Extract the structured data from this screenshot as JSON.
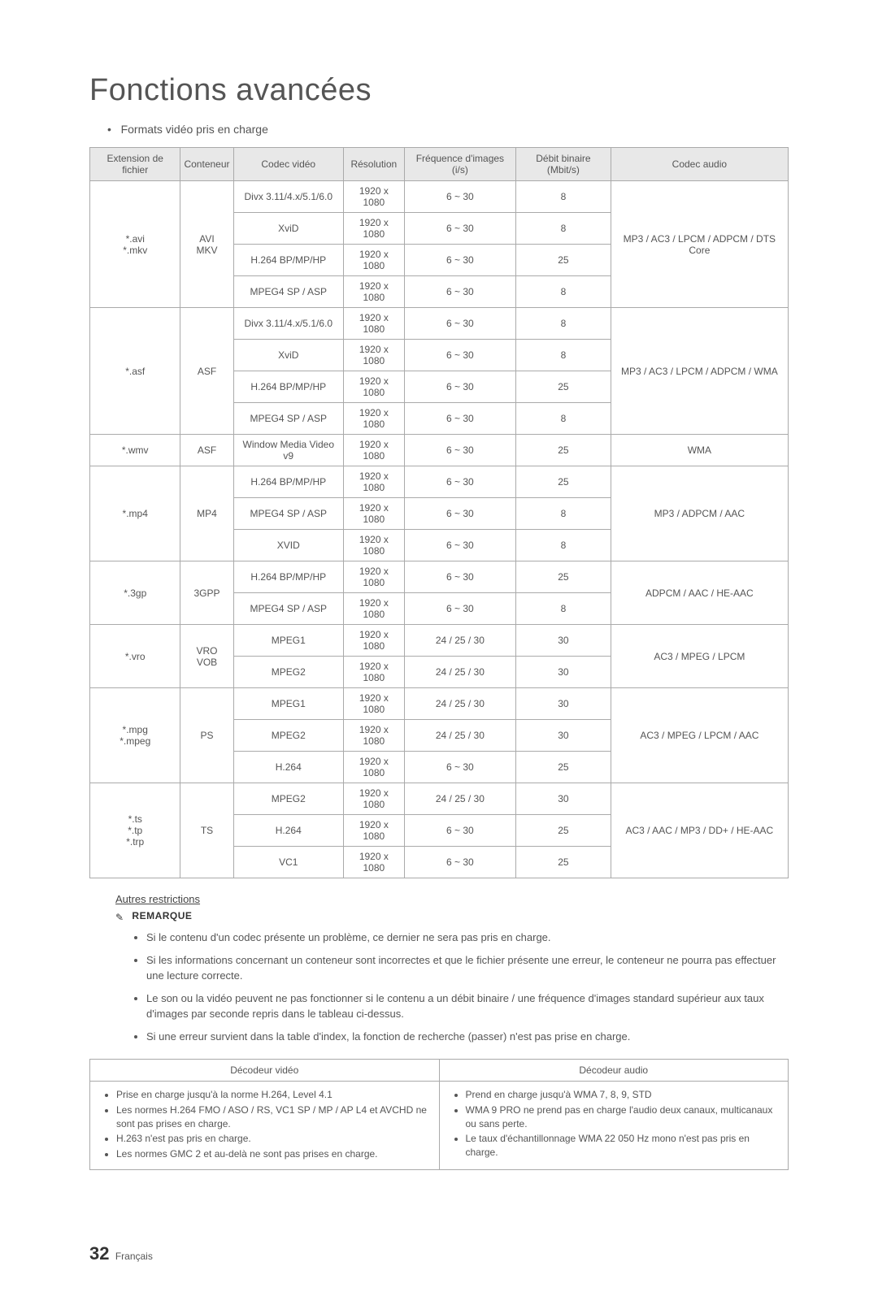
{
  "title": "Fonctions avancées",
  "subtitle": "•   Formats vidéo pris en charge",
  "table": {
    "headers": {
      "ext": "Extension de fichier",
      "container": "Conteneur",
      "vcodec": "Codec vidéo",
      "res": "Résolution",
      "fps": "Fréquence d'images (i/s)",
      "bitrate": "Débit binaire (Mbit/s)",
      "acodec": "Codec audio"
    },
    "groups": [
      {
        "ext": "*.avi\n*.mkv",
        "container": "AVI\nMKV",
        "acodec": "MP3 / AC3 / LPCM / ADPCM / DTS Core",
        "rows": [
          {
            "v": "Divx 3.11/4.x/5.1/6.0",
            "r": "1920 x 1080",
            "f": "6 ~ 30",
            "b": "8"
          },
          {
            "v": "XviD",
            "r": "1920 x 1080",
            "f": "6 ~ 30",
            "b": "8"
          },
          {
            "v": "H.264 BP/MP/HP",
            "r": "1920 x 1080",
            "f": "6 ~ 30",
            "b": "25"
          },
          {
            "v": "MPEG4 SP / ASP",
            "r": "1920 x 1080",
            "f": "6 ~ 30",
            "b": "8"
          }
        ]
      },
      {
        "ext": "*.asf",
        "container": "ASF",
        "acodec": "MP3 / AC3 / LPCM / ADPCM / WMA",
        "rows": [
          {
            "v": "Divx 3.11/4.x/5.1/6.0",
            "r": "1920 x 1080",
            "f": "6 ~ 30",
            "b": "8"
          },
          {
            "v": "XviD",
            "r": "1920 x 1080",
            "f": "6 ~ 30",
            "b": "8"
          },
          {
            "v": "H.264 BP/MP/HP",
            "r": "1920 x 1080",
            "f": "6 ~ 30",
            "b": "25"
          },
          {
            "v": "MPEG4 SP / ASP",
            "r": "1920 x 1080",
            "f": "6 ~ 30",
            "b": "8"
          }
        ]
      },
      {
        "ext": "*.wmv",
        "container": "ASF",
        "acodec": "WMA",
        "rows": [
          {
            "v": "Window Media Video v9",
            "r": "1920 x 1080",
            "f": "6 ~ 30",
            "b": "25"
          }
        ]
      },
      {
        "ext": "*.mp4",
        "container": "MP4",
        "acodec": "MP3 / ADPCM / AAC",
        "rows": [
          {
            "v": "H.264 BP/MP/HP",
            "r": "1920 x 1080",
            "f": "6 ~ 30",
            "b": "25"
          },
          {
            "v": "MPEG4 SP / ASP",
            "r": "1920 x 1080",
            "f": "6 ~ 30",
            "b": "8"
          },
          {
            "v": "XVID",
            "r": "1920 x 1080",
            "f": "6 ~ 30",
            "b": "8"
          }
        ]
      },
      {
        "ext": "*.3gp",
        "container": "3GPP",
        "acodec": "ADPCM / AAC / HE-AAC",
        "rows": [
          {
            "v": "H.264 BP/MP/HP",
            "r": "1920 x 1080",
            "f": "6 ~ 30",
            "b": "25"
          },
          {
            "v": "MPEG4 SP / ASP",
            "r": "1920 x 1080",
            "f": "6 ~ 30",
            "b": "8"
          }
        ]
      },
      {
        "ext": "*.vro",
        "container": "VRO\nVOB",
        "acodec": "AC3 / MPEG / LPCM",
        "rows": [
          {
            "v": "MPEG1",
            "r": "1920 x 1080",
            "f": "24 / 25 / 30",
            "b": "30"
          },
          {
            "v": "MPEG2",
            "r": "1920 x 1080",
            "f": "24 / 25 / 30",
            "b": "30"
          }
        ]
      },
      {
        "ext": "*.mpg\n*.mpeg",
        "container": "PS",
        "acodec": "AC3 / MPEG / LPCM / AAC",
        "rows": [
          {
            "v": "MPEG1",
            "r": "1920 x 1080",
            "f": "24 / 25 / 30",
            "b": "30"
          },
          {
            "v": "MPEG2",
            "r": "1920 x 1080",
            "f": "24 / 25 / 30",
            "b": "30"
          },
          {
            "v": "H.264",
            "r": "1920 x 1080",
            "f": "6 ~ 30",
            "b": "25"
          }
        ]
      },
      {
        "ext": "*.ts\n*.tp\n*.trp",
        "container": "TS",
        "acodec": "AC3 / AAC / MP3 / DD+ / HE-AAC",
        "rows": [
          {
            "v": "MPEG2",
            "r": "1920 x 1080",
            "f": "24 / 25 / 30",
            "b": "30"
          },
          {
            "v": "H.264",
            "r": "1920 x 1080",
            "f": "6 ~ 30",
            "b": "25"
          },
          {
            "v": "VC1",
            "r": "1920 x 1080",
            "f": "6 ~ 30",
            "b": "25"
          }
        ]
      }
    ]
  },
  "restrictions_heading": "Autres restrictions",
  "remarque_label": "REMARQUE",
  "notes": [
    "Si le contenu d'un codec présente un problème, ce dernier ne sera pas pris en charge.",
    "Si les informations concernant un conteneur sont incorrectes et que le fichier présente une erreur, le conteneur ne pourra pas effectuer une lecture correcte.",
    "Le son ou la vidéo peuvent ne pas fonctionner si le contenu a un débit binaire / une fréquence d'images standard supérieur aux taux d'images par seconde repris dans le tableau ci-dessus.",
    "Si une erreur survient dans la table d'index, la fonction de recherche (passer) n'est pas prise en charge."
  ],
  "decoder": {
    "headers": {
      "video": "Décodeur vidéo",
      "audio": "Décodeur audio"
    },
    "video": [
      "Prise en charge jusqu'à la norme H.264, Level 4.1",
      "Les normes H.264 FMO / ASO / RS, VC1 SP / MP / AP L4 et AVCHD ne sont pas prises en charge.",
      "H.263 n'est pas pris en charge.",
      "Les normes GMC 2 et au-delà ne sont pas prises en charge."
    ],
    "audio": [
      "Prend en charge jusqu'à WMA 7, 8, 9, STD",
      "WMA 9 PRO ne prend pas en charge l'audio deux canaux, multicanaux ou sans perte.",
      "Le taux d'échantillonnage WMA 22 050 Hz mono n'est pas pris en charge."
    ]
  },
  "footer": {
    "page": "32",
    "lang": "Français"
  }
}
